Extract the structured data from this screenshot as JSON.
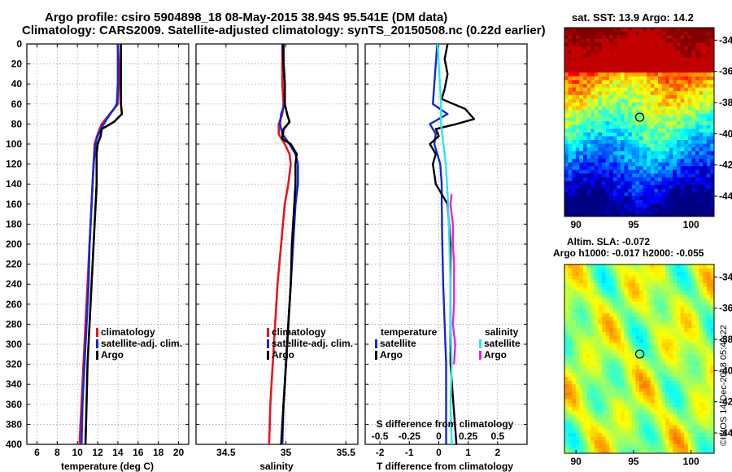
{
  "figure": {
    "title_line1": "Argo profile: csiro 5904898_18 08-May-2015 38.94S 95.541E (DM data)",
    "title_line2": "Climatology: CARS2009. Satellite-adjusted climatology: synTS_20150508.nc (0.22d earlier)",
    "timestamp": "©IMOS 14-Dec-2018 05:49:22"
  },
  "colors": {
    "climatology": "#e8141e",
    "satellite": "#1428d2",
    "argo": "#000000",
    "sal_satellite": "#28e6f0",
    "sal_argo": "#f01ee6",
    "grid": "#969696"
  },
  "chart_data": [
    {
      "type": "line",
      "name": "temperature-profile",
      "xlabel": "temperature (deg C)",
      "ylabel": "",
      "xlim": [
        5,
        21
      ],
      "ylim": [
        400,
        0
      ],
      "xticks": [
        "6",
        "8",
        "10",
        "12",
        "14",
        "16",
        "18",
        "20"
      ],
      "yticks": [
        "0",
        "20",
        "40",
        "60",
        "80",
        "100",
        "120",
        "140",
        "160",
        "180",
        "200",
        "220",
        "240",
        "260",
        "280",
        "300",
        "320",
        "340",
        "360",
        "380",
        "400"
      ],
      "legend": [
        "climatology",
        "satellite-adj. clim.",
        "Argo"
      ],
      "legend_position": "lower-right",
      "series": [
        {
          "name": "climatology",
          "depth": [
            0,
            20,
            40,
            60,
            70,
            80,
            90,
            100,
            120,
            140,
            160,
            180,
            200,
            240,
            280,
            320,
            360,
            400
          ],
          "values": [
            14.0,
            14.1,
            14.1,
            14.0,
            13.2,
            12.4,
            12.0,
            11.7,
            11.6,
            11.5,
            11.4,
            11.3,
            11.2,
            11.0,
            10.8,
            10.6,
            10.4,
            10.2
          ]
        },
        {
          "name": "satellite-adj. clim.",
          "depth": [
            0,
            20,
            40,
            60,
            65,
            75,
            85,
            95,
            100,
            110,
            120,
            140,
            160,
            180,
            200,
            240,
            280,
            320,
            360,
            400
          ],
          "values": [
            14.0,
            14.0,
            14.0,
            13.9,
            13.6,
            12.9,
            12.3,
            11.9,
            11.8,
            11.7,
            11.6,
            11.5,
            11.4,
            11.3,
            11.2,
            11.1,
            10.9,
            10.7,
            10.5,
            10.4
          ]
        },
        {
          "name": "Argo",
          "depth": [
            0,
            20,
            40,
            60,
            70,
            78,
            85,
            92,
            100,
            110,
            120,
            140,
            160,
            180,
            200,
            240,
            280,
            320,
            360,
            400
          ],
          "values": [
            14.3,
            14.3,
            14.3,
            14.3,
            14.4,
            13.6,
            12.4,
            12.3,
            12.0,
            11.9,
            11.9,
            11.9,
            11.8,
            11.7,
            11.6,
            11.4,
            11.2,
            11.0,
            10.9,
            10.8
          ]
        }
      ]
    },
    {
      "type": "line",
      "name": "salinity-profile",
      "xlabel": "salinity",
      "xlim": [
        34.25,
        35.6
      ],
      "ylim": [
        400,
        0
      ],
      "xticks": [
        "34.5",
        "35",
        "35.5"
      ],
      "legend": [
        "climatology",
        "satellite-adj. clim.",
        "Argo"
      ],
      "legend_position": "lower-right",
      "series": [
        {
          "name": "climatology",
          "depth": [
            0,
            20,
            40,
            60,
            70,
            80,
            90,
            100,
            110,
            120,
            140,
            160,
            200,
            240,
            280,
            320,
            360,
            400
          ],
          "values": [
            34.97,
            34.97,
            34.97,
            34.98,
            34.97,
            34.94,
            34.94,
            34.99,
            35.03,
            35.04,
            35.02,
            34.99,
            34.96,
            34.93,
            34.91,
            34.89,
            34.87,
            34.86
          ]
        },
        {
          "name": "satellite-adj. clim.",
          "depth": [
            0,
            20,
            40,
            60,
            70,
            80,
            90,
            100,
            110,
            120,
            140,
            160,
            200,
            240,
            280,
            320,
            360,
            400
          ],
          "values": [
            34.97,
            34.98,
            34.99,
            34.99,
            34.96,
            34.95,
            34.97,
            35.03,
            35.08,
            35.1,
            35.1,
            35.08,
            35.06,
            35.04,
            35.02,
            35.0,
            34.98,
            34.97
          ]
        },
        {
          "name": "Argo",
          "depth": [
            0,
            20,
            40,
            60,
            70,
            78,
            85,
            95,
            100,
            110,
            120,
            140,
            160,
            180,
            200,
            240,
            280,
            320,
            360,
            400
          ],
          "values": [
            34.98,
            34.98,
            34.99,
            34.99,
            35.01,
            35.03,
            34.98,
            34.97,
            35.04,
            35.09,
            35.08,
            35.08,
            35.07,
            35.06,
            35.05,
            35.04,
            35.02,
            35.0,
            34.98,
            34.96
          ]
        }
      ]
    },
    {
      "type": "line",
      "name": "difference-profile",
      "xlabel": "T difference from climatology",
      "xlabel2": "S difference from climatology",
      "xlim": [
        -2.5,
        3.0
      ],
      "xlim2": [
        -0.625,
        0.75
      ],
      "ylim": [
        400,
        0
      ],
      "xticks": [
        "-2",
        "-1",
        "0",
        "1",
        "2"
      ],
      "xticks2": [
        "-0.5",
        "-0.25",
        "0",
        "0.25",
        "0.5"
      ],
      "legend_temperature_title": "temperature",
      "legend_salinity_title": "salinity",
      "legend_temperature": [
        "satellite",
        "Argo"
      ],
      "legend_salinity": [
        "satellite",
        "Argo"
      ],
      "series": [
        {
          "name": "T satellite",
          "depth": [
            0,
            20,
            40,
            60,
            70,
            80,
            90,
            100,
            120,
            140,
            160,
            200,
            240,
            280,
            320,
            360,
            400
          ],
          "values": [
            -0.05,
            -0.1,
            -0.15,
            -0.2,
            0.3,
            -0.3,
            -0.1,
            -0.15,
            0.05,
            0.1,
            0.1,
            0.12,
            0.15,
            0.2,
            0.25,
            0.25,
            0.25
          ]
        },
        {
          "name": "T Argo",
          "depth": [
            0,
            15,
            30,
            45,
            55,
            65,
            75,
            80,
            85,
            92,
            100,
            110,
            120,
            140,
            150,
            160,
            200,
            240,
            280,
            320,
            360,
            400
          ],
          "values": [
            0.3,
            0.2,
            0.3,
            0.2,
            0.1,
            0.9,
            1.2,
            0.6,
            -0.1,
            0.0,
            -0.3,
            -0.1,
            -0.2,
            -0.1,
            0.1,
            0.3,
            0.4,
            0.4,
            0.4,
            0.4,
            0.5,
            0.6
          ]
        },
        {
          "name": "S satellite",
          "depth": [
            0,
            20,
            40,
            60,
            70,
            80,
            90,
            100,
            120,
            140,
            160,
            200,
            240,
            280,
            320,
            360,
            400
          ],
          "values": [
            -0.01,
            0.0,
            0.01,
            0.02,
            0.02,
            0.02,
            0.03,
            0.04,
            0.06,
            0.07,
            0.08,
            0.09,
            0.1,
            0.1,
            0.11,
            0.1,
            0.11
          ]
        },
        {
          "name": "S Argo",
          "depth": [
            150,
            160,
            180,
            200,
            220,
            240,
            260,
            280,
            300,
            320
          ],
          "values": [
            0.11,
            0.1,
            0.12,
            0.12,
            0.13,
            0.13,
            0.13,
            0.12,
            0.14,
            0.13
          ]
        }
      ]
    }
  ],
  "maps": {
    "sst": {
      "title": "sat. SST: 13.9 Argo: 14.2",
      "xticks": [
        "90",
        "95",
        "100"
      ],
      "yticks": [
        "-34",
        "-36",
        "-38",
        "-40",
        "-42",
        "-44"
      ],
      "lon_range": [
        89,
        102
      ],
      "lat_range": [
        -45.3,
        -33.2
      ],
      "marker": {
        "lon": 95.54,
        "lat": -38.94
      }
    },
    "sla": {
      "title_line1": "Altim. SLA: -0.072",
      "title_line2": "Argo h1000: -0.017 h2000: -0.055",
      "xticks": [
        "90",
        "95",
        "100"
      ],
      "yticks": [
        "-34",
        "-36",
        "-38",
        "-40",
        "-42",
        "-44"
      ],
      "lon_range": [
        89,
        102
      ],
      "lat_range": [
        -45.3,
        -33.2
      ],
      "marker": {
        "lon": 95.54,
        "lat": -38.94
      }
    }
  }
}
